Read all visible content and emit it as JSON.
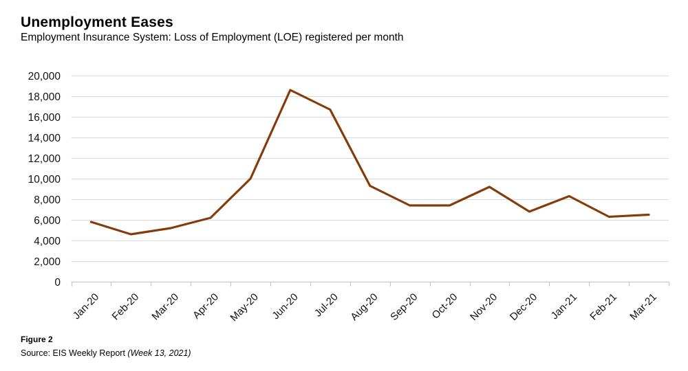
{
  "header": {
    "title": "Unemployment Eases",
    "subtitle": "Employment Insurance System: Loss of Employment (LOE) registered per month"
  },
  "footer": {
    "figure_label": "Figure 2",
    "source_text": "Source: EIS Weekly Report",
    "source_note": "(Week 13, 2021)"
  },
  "colors": {
    "line": "#843C0C",
    "gridline": "#D9D9D9",
    "axis": "#BFBFBF",
    "tick": "#BFBFBF",
    "label_text": "#111111"
  },
  "chart_data": {
    "type": "line",
    "title": "Unemployment Eases",
    "subtitle": "Employment Insurance System: Loss of Employment (LOE) registered per month",
    "categories": [
      "Jan-20",
      "Feb-20",
      "Mar-20",
      "Apr-20",
      "May-20",
      "Jun-20",
      "Jul-20",
      "Aug-20",
      "Sep-20",
      "Oct-20",
      "Nov-20",
      "Dec-20",
      "Jan-21",
      "Feb-21",
      "Mar-21"
    ],
    "series": [
      {
        "name": "LOE registered per month",
        "color": "#843C0C",
        "values": [
          5800,
          4600,
          5200,
          6200,
          10000,
          18600,
          16700,
          9300,
          7400,
          7400,
          9200,
          6800,
          8300,
          6300,
          6500
        ]
      }
    ],
    "xlabel": "",
    "ylabel": "",
    "ylim": [
      0,
      20000
    ],
    "ytick_step": 2000,
    "ytick_labels": [
      "0",
      "2,000",
      "4,000",
      "6,000",
      "8,000",
      "10,000",
      "12,000",
      "14,000",
      "16,000",
      "18,000",
      "20,000"
    ],
    "x_tick_rotation": -45,
    "grid": "horizontal",
    "legend": "none",
    "markers": false
  }
}
